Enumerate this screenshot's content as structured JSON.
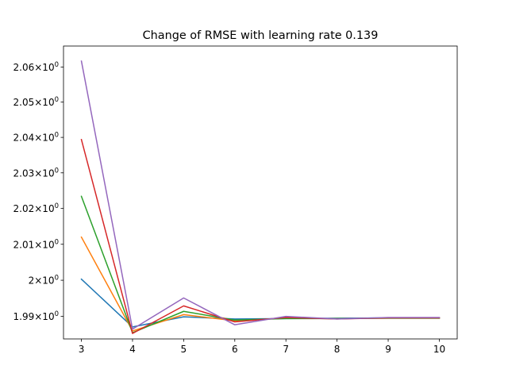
{
  "chart_data": {
    "type": "line",
    "title": "Change of RMSE with learning rate 0.139",
    "xlabel": "",
    "ylabel": "",
    "yscale": "log",
    "x": [
      3,
      4,
      5,
      6,
      7,
      8,
      9,
      10
    ],
    "xlim": [
      2.65,
      10.35
    ],
    "ylim": [
      1.9838,
      2.066
    ],
    "grid": false,
    "legend": "none",
    "x_ticks": [
      {
        "value": 3,
        "label": "3"
      },
      {
        "value": 4,
        "label": "4"
      },
      {
        "value": 5,
        "label": "5"
      },
      {
        "value": 6,
        "label": "6"
      },
      {
        "value": 7,
        "label": "7"
      },
      {
        "value": 8,
        "label": "8"
      },
      {
        "value": 9,
        "label": "9"
      },
      {
        "value": 10,
        "label": "10"
      }
    ],
    "y_ticks": [
      {
        "value": 1.99,
        "base": "1.99",
        "exp": "0"
      },
      {
        "value": 2.0,
        "base": "2",
        "exp": "0"
      },
      {
        "value": 2.01,
        "base": "2.01",
        "exp": "0"
      },
      {
        "value": 2.02,
        "base": "2.02",
        "exp": "0"
      },
      {
        "value": 2.03,
        "base": "2.03",
        "exp": "0"
      },
      {
        "value": 2.04,
        "base": "2.04",
        "exp": "0"
      },
      {
        "value": 2.05,
        "base": "2.05",
        "exp": "0"
      },
      {
        "value": 2.06,
        "base": "2.06",
        "exp": "0"
      }
    ],
    "series": [
      {
        "color": "#1f77b4",
        "values": [
          2.0003,
          1.9871,
          1.9899,
          1.9893,
          1.9894,
          1.9895,
          1.9896,
          1.9896
        ]
      },
      {
        "color": "#ff7f0e",
        "values": [
          2.012,
          1.986,
          1.9905,
          1.9888,
          1.9895,
          1.9894,
          1.9895,
          1.9895
        ]
      },
      {
        "color": "#2ca02c",
        "values": [
          2.0234,
          1.9855,
          1.9914,
          1.989,
          1.9894,
          1.9894,
          1.9895,
          1.9895
        ]
      },
      {
        "color": "#d62728",
        "values": [
          2.0394,
          1.9853,
          1.9929,
          1.9885,
          1.9897,
          1.9893,
          1.9896,
          1.9896
        ]
      },
      {
        "color": "#9467bd",
        "values": [
          2.0617,
          1.9865,
          1.9951,
          1.9877,
          1.99,
          1.9893,
          1.9897,
          1.9897
        ]
      }
    ]
  }
}
